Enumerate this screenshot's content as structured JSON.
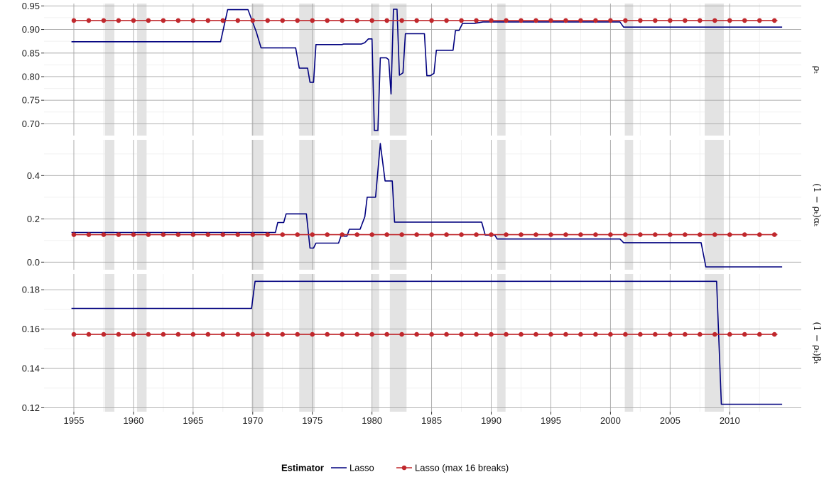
{
  "chart_data": {
    "type": "line",
    "x_axis": {
      "ticks": [
        1955,
        1960,
        1965,
        1970,
        1975,
        1980,
        1985,
        1990,
        1995,
        2000,
        2005,
        2010
      ],
      "xlim": [
        1952.5,
        2016
      ],
      "grid": true
    },
    "recessions": [
      [
        1957.6,
        1958.4
      ],
      [
        1960.3,
        1961.1
      ],
      [
        1969.9,
        1970.9
      ],
      [
        1973.9,
        1975.2
      ],
      [
        1980.0,
        1980.6
      ],
      [
        1981.5,
        1982.9
      ],
      [
        1990.5,
        1991.2
      ],
      [
        2001.2,
        2001.9
      ],
      [
        2007.9,
        2009.5
      ]
    ],
    "panels": [
      {
        "strip_label": "ρₜ",
        "ylim": [
          0.675,
          0.955
        ],
        "yticks": [
          0.7,
          0.75,
          0.8,
          0.85,
          0.9,
          0.95
        ],
        "ytick_labels": [
          "0.70",
          "0.75",
          "0.80",
          "0.85",
          "0.90",
          "0.95"
        ],
        "series": [
          {
            "name": "Lasso",
            "values": [
              [
                1954.8,
                0.874
              ],
              [
                1967.3,
                0.874
              ],
              [
                1967.9,
                0.942
              ],
              [
                1969.6,
                0.942
              ],
              [
                1970.3,
                0.895
              ],
              [
                1970.7,
                0.861
              ],
              [
                1971.5,
                0.861
              ],
              [
                1973.6,
                0.861
              ],
              [
                1973.9,
                0.818
              ],
              [
                1974.6,
                0.818
              ],
              [
                1974.8,
                0.788
              ],
              [
                1975.1,
                0.788
              ],
              [
                1975.3,
                0.868
              ],
              [
                1977.5,
                0.868
              ],
              [
                1977.6,
                0.869
              ],
              [
                1979.1,
                0.869
              ],
              [
                1979.4,
                0.872
              ],
              [
                1979.7,
                0.88
              ],
              [
                1980.0,
                0.88
              ],
              [
                1980.2,
                0.686
              ],
              [
                1980.5,
                0.686
              ],
              [
                1980.7,
                0.84
              ],
              [
                1981.2,
                0.84
              ],
              [
                1981.4,
                0.836
              ],
              [
                1981.6,
                0.763
              ],
              [
                1981.8,
                0.943
              ],
              [
                1982.1,
                0.943
              ],
              [
                1982.3,
                0.803
              ],
              [
                1982.6,
                0.808
              ],
              [
                1982.8,
                0.891
              ],
              [
                1984.4,
                0.891
              ],
              [
                1984.6,
                0.802
              ],
              [
                1984.9,
                0.802
              ],
              [
                1985.2,
                0.807
              ],
              [
                1985.4,
                0.856
              ],
              [
                1986.8,
                0.856
              ],
              [
                1987.0,
                0.898
              ],
              [
                1987.3,
                0.898
              ],
              [
                1987.6,
                0.913
              ],
              [
                1988.6,
                0.913
              ],
              [
                1989.3,
                0.916
              ],
              [
                2000.8,
                0.916
              ],
              [
                2001.1,
                0.905
              ],
              [
                2014.4,
                0.905
              ]
            ]
          },
          {
            "name": "Lasso (max 16 breaks)",
            "constant": 0.919
          }
        ]
      },
      {
        "strip_label": "(1 − ρₜ)αₜ",
        "ylim": [
          -0.035,
          0.565
        ],
        "yticks": [
          0.0,
          0.2,
          0.4
        ],
        "ytick_labels": [
          "0.0",
          "0.2",
          "0.4"
        ],
        "series": [
          {
            "name": "Lasso",
            "values": [
              [
                1954.8,
                0.137
              ],
              [
                1971.9,
                0.137
              ],
              [
                1972.1,
                0.183
              ],
              [
                1972.6,
                0.183
              ],
              [
                1972.8,
                0.223
              ],
              [
                1974.5,
                0.223
              ],
              [
                1974.8,
                0.065
              ],
              [
                1975.1,
                0.065
              ],
              [
                1975.3,
                0.088
              ],
              [
                1977.2,
                0.088
              ],
              [
                1977.4,
                0.12
              ],
              [
                1977.9,
                0.12
              ],
              [
                1978.1,
                0.152
              ],
              [
                1979.0,
                0.152
              ],
              [
                1979.4,
                0.21
              ],
              [
                1979.6,
                0.3
              ],
              [
                1980.3,
                0.3
              ],
              [
                1980.7,
                0.548
              ],
              [
                1981.1,
                0.375
              ],
              [
                1981.7,
                0.375
              ],
              [
                1981.9,
                0.185
              ],
              [
                1989.2,
                0.185
              ],
              [
                1989.5,
                0.125
              ],
              [
                1990.3,
                0.125
              ],
              [
                1990.5,
                0.107
              ],
              [
                2000.8,
                0.107
              ],
              [
                2001.1,
                0.09
              ],
              [
                2007.6,
                0.09
              ],
              [
                2008.0,
                -0.022
              ],
              [
                2014.4,
                -0.022
              ]
            ]
          },
          {
            "name": "Lasso (max 16 breaks)",
            "constant": 0.127
          }
        ]
      },
      {
        "strip_label": "(1 − ρₜ)βₜ",
        "ylim": [
          0.118,
          0.188
        ],
        "yticks": [
          0.12,
          0.14,
          0.16,
          0.18
        ],
        "ytick_labels": [
          "0.12",
          "0.14",
          "0.16",
          "0.18"
        ],
        "series": [
          {
            "name": "Lasso",
            "values": [
              [
                1954.8,
                0.1705
              ],
              [
                1969.9,
                0.1705
              ],
              [
                1970.2,
                0.1843
              ],
              [
                2008.9,
                0.1843
              ],
              [
                2009.3,
                0.1218
              ],
              [
                2014.4,
                0.1218
              ]
            ]
          },
          {
            "name": "Lasso (max 16 breaks)",
            "constant": 0.1573
          }
        ]
      }
    ],
    "legend": {
      "title": "Estimator",
      "position": "bottom",
      "entries": [
        {
          "name": "Lasso",
          "color": "#00007f",
          "marker": false
        },
        {
          "name": "Lasso (max 16 breaks)",
          "color": "#c0282d",
          "marker": true
        }
      ]
    },
    "dotted_series": {
      "x_start": 1955.0,
      "x_step": 1.25,
      "x_end": 2014.0
    },
    "colors": {
      "lasso": "#00007f",
      "lasso_max16": "#c0282d",
      "recession": "#e3e3e3",
      "grid_major": "#a6a6a6",
      "grid_minor": "#f0f0f0"
    }
  }
}
